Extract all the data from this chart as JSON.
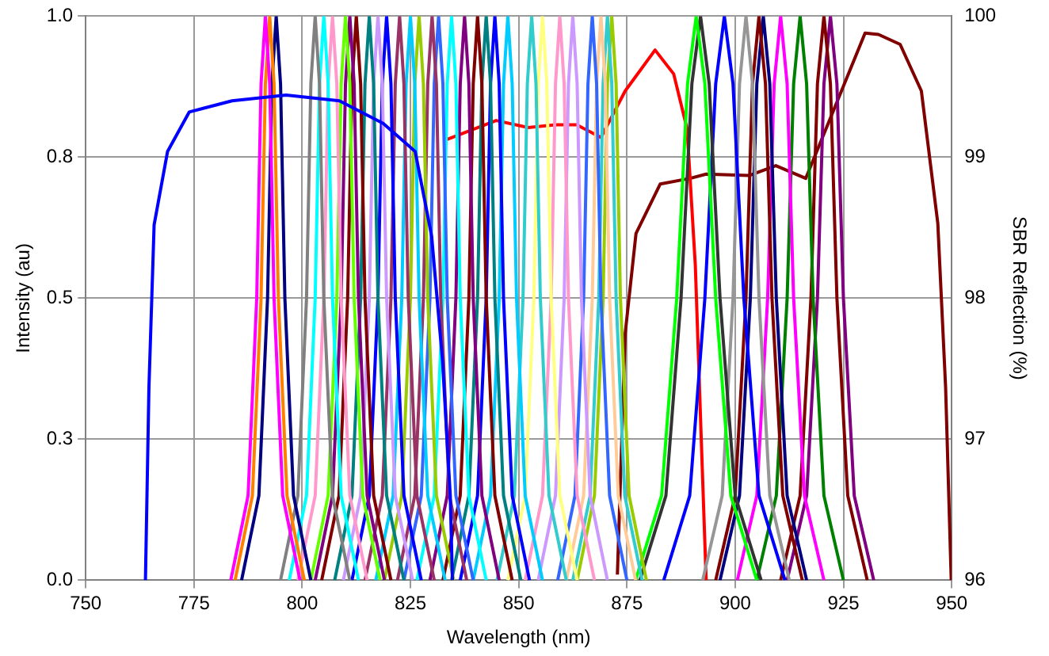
{
  "chart_data": {
    "type": "line",
    "xlabel": "Wavelength (nm)",
    "ylabel": "Intensity (au)",
    "y2label": "SBR Reflection (%)",
    "xlim": [
      750,
      950
    ],
    "xticks": [
      750,
      775,
      800,
      825,
      850,
      875,
      900,
      925,
      950
    ],
    "ylim": [
      0,
      1
    ],
    "yticks": [
      {
        "value": 0,
        "label": "0.0"
      },
      {
        "value": 0.25,
        "label": "0.3"
      },
      {
        "value": 0.5,
        "label": "0.5"
      },
      {
        "value": 0.75,
        "label": "0.8"
      },
      {
        "value": 1,
        "label": "1.0"
      }
    ],
    "y2lim": [
      96,
      100
    ],
    "y2ticks": [
      96,
      97,
      98,
      99,
      100
    ],
    "grid": true,
    "legend": false,
    "marker": "none",
    "line_style": "solid",
    "series": [
      {
        "color": "#0000ff",
        "x": [
          763.8,
          764.6,
          765.8,
          768.9,
          773.9,
          783.8,
          796.3,
          808.6,
          818.7,
          826.1,
          829.9,
          832.4,
          834.2,
          834.7
        ],
        "values": [
          0,
          0.34,
          0.63,
          0.76,
          0.83,
          0.85,
          0.86,
          0.85,
          0.81,
          0.76,
          0.61,
          0.39,
          0.15,
          0
        ]
      },
      {
        "color": "#ff00ff",
        "x": [
          783.5,
          787.5,
          789.5,
          790.5,
          791.5,
          792.5,
          793.5,
          795.5,
          799.5
        ],
        "values": [
          0,
          0.15,
          0.5,
          0.88,
          1,
          0.88,
          0.5,
          0.15,
          0
        ]
      },
      {
        "color": "#ff8000",
        "x": [
          784.5,
          788.5,
          790.5,
          791.5,
          792.5,
          793.5,
          794.5,
          796.5,
          800.5
        ],
        "values": [
          0,
          0.15,
          0.5,
          0.88,
          1,
          0.88,
          0.5,
          0.15,
          0
        ]
      },
      {
        "color": "#000080",
        "x": [
          786,
          790,
          792,
          793,
          794,
          795,
          796,
          798,
          802
        ],
        "values": [
          0,
          0.15,
          0.5,
          0.88,
          1,
          0.88,
          0.5,
          0.15,
          0
        ]
      },
      {
        "color": "#808080",
        "x": [
          795,
          799,
          801,
          802,
          803,
          804,
          805,
          807,
          811
        ],
        "values": [
          0,
          0.15,
          0.5,
          0.88,
          1,
          0.88,
          0.5,
          0.15,
          0
        ]
      },
      {
        "color": "#00ffff",
        "x": [
          797,
          801,
          803,
          804,
          805,
          806,
          807,
          809,
          813
        ],
        "values": [
          0,
          0.15,
          0.5,
          0.88,
          1,
          0.88,
          0.5,
          0.15,
          0
        ]
      },
      {
        "color": "#ff99cc",
        "x": [
          799,
          803,
          805,
          806,
          807,
          808,
          809,
          811,
          815
        ],
        "values": [
          0,
          0.15,
          0.5,
          0.88,
          1,
          0.88,
          0.5,
          0.15,
          0
        ]
      },
      {
        "color": "#66ff00",
        "x": [
          802,
          806,
          808,
          809,
          810,
          811,
          812,
          814,
          818
        ],
        "values": [
          0,
          0.15,
          0.5,
          0.88,
          1,
          0.88,
          0.5,
          0.15,
          0
        ]
      },
      {
        "color": "#800080",
        "x": [
          803,
          807,
          809,
          810,
          811,
          812,
          813,
          815,
          819
        ],
        "values": [
          0,
          0.15,
          0.5,
          0.88,
          1,
          0.88,
          0.5,
          0.15,
          0
        ]
      },
      {
        "color": "#800000",
        "x": [
          804.5,
          808.5,
          810.5,
          811.5,
          812.5,
          813.5,
          814.5,
          816.5,
          820.5
        ],
        "values": [
          0,
          0.15,
          0.5,
          0.88,
          1,
          0.88,
          0.5,
          0.15,
          0
        ]
      },
      {
        "color": "#008080",
        "x": [
          807.5,
          811.5,
          813.5,
          814.5,
          815.5,
          816.5,
          817.5,
          819.5,
          823.5
        ],
        "values": [
          0,
          0.15,
          0.5,
          0.88,
          1,
          0.88,
          0.5,
          0.15,
          0
        ]
      },
      {
        "color": "#cc99ff",
        "x": [
          809.5,
          813.5,
          815.5,
          816.5,
          817.5,
          818.5,
          819.5,
          821.5,
          825.5
        ],
        "values": [
          0,
          0.15,
          0.5,
          0.88,
          1,
          0.88,
          0.5,
          0.15,
          0
        ]
      },
      {
        "color": "#0000ff",
        "x": [
          811.5,
          815.5,
          817.5,
          818.5,
          819.5,
          820.5,
          821.5,
          823.5,
          827.5
        ],
        "values": [
          0,
          0.15,
          0.5,
          0.88,
          1,
          0.88,
          0.5,
          0.15,
          0
        ]
      },
      {
        "color": "#993366",
        "x": [
          814.5,
          818.5,
          820.5,
          821.5,
          822.5,
          823.5,
          824.5,
          826.5,
          830.5
        ],
        "values": [
          0,
          0.15,
          0.5,
          0.88,
          1,
          0.88,
          0.5,
          0.15,
          0
        ]
      },
      {
        "color": "#00ccff",
        "x": [
          817,
          821,
          823,
          824,
          825,
          826,
          827,
          829,
          833
        ],
        "values": [
          0,
          0.15,
          0.5,
          0.88,
          1,
          0.88,
          0.5,
          0.15,
          0
        ]
      },
      {
        "color": "#99cc00",
        "x": [
          819,
          823,
          825,
          826,
          827,
          828,
          829,
          831,
          835
        ],
        "values": [
          0,
          0.15,
          0.5,
          0.88,
          1,
          0.88,
          0.5,
          0.15,
          0
        ]
      },
      {
        "color": "#993366",
        "x": [
          822,
          826,
          828,
          829,
          830,
          831,
          832,
          834,
          838
        ],
        "values": [
          0,
          0.15,
          0.5,
          0.88,
          1,
          0.88,
          0.5,
          0.15,
          0
        ]
      },
      {
        "color": "#3366ff",
        "x": [
          823.5,
          827.5,
          829.5,
          830.5,
          831.5,
          832.5,
          833.5,
          835.5,
          839.5
        ],
        "values": [
          0,
          0.15,
          0.5,
          0.88,
          1,
          0.88,
          0.5,
          0.15,
          0
        ]
      },
      {
        "color": "#00ffff",
        "x": [
          826.5,
          830.5,
          832.5,
          833.5,
          834.5,
          835.5,
          836.5,
          838.5,
          842.5
        ],
        "values": [
          0,
          0.15,
          0.5,
          0.88,
          1,
          0.88,
          0.5,
          0.15,
          0
        ]
      },
      {
        "color": "#800080",
        "x": [
          829.5,
          833.5,
          835.5,
          836.5,
          837.5,
          838.5,
          839.5,
          841.5,
          845.5
        ],
        "values": [
          0,
          0.15,
          0.5,
          0.88,
          1,
          0.88,
          0.5,
          0.15,
          0
        ]
      },
      {
        "color": "#800000",
        "x": [
          832.5,
          836.5,
          838.5,
          839.5,
          840.5,
          841.5,
          842.5,
          844.5,
          848.5
        ],
        "values": [
          0,
          0.15,
          0.5,
          0.88,
          1,
          0.88,
          0.5,
          0.15,
          0
        ]
      },
      {
        "color": "#008080",
        "x": [
          834.5,
          838.5,
          840.5,
          841.5,
          842.5,
          843.5,
          844.5,
          846.5,
          850.5
        ],
        "values": [
          0,
          0.15,
          0.5,
          0.88,
          1,
          0.88,
          0.5,
          0.15,
          0
        ]
      },
      {
        "color": "#0000ff",
        "x": [
          836.5,
          840.5,
          842.5,
          843.5,
          844.5,
          845.5,
          846.5,
          848.5,
          852.5
        ],
        "values": [
          0,
          0.15,
          0.5,
          0.88,
          1,
          0.88,
          0.5,
          0.15,
          0
        ]
      },
      {
        "color": "#00ccff",
        "x": [
          839.5,
          843.5,
          845.5,
          846.5,
          847.5,
          848.5,
          849.5,
          851.5,
          855.5
        ],
        "values": [
          0,
          0.15,
          0.5,
          0.88,
          1,
          0.88,
          0.5,
          0.15,
          0
        ]
      },
      {
        "color": "#33cccc",
        "x": [
          845,
          849,
          851,
          852,
          853,
          854,
          855,
          857,
          861
        ],
        "values": [
          0,
          0.15,
          0.5,
          0.88,
          1,
          0.88,
          0.5,
          0.15,
          0
        ]
      },
      {
        "color": "#ffff80",
        "x": [
          847.5,
          851.5,
          853.5,
          854.5,
          855.5,
          856.5,
          857.5,
          859.5,
          863.5
        ],
        "values": [
          0,
          0.15,
          0.5,
          0.88,
          1,
          0.88,
          0.5,
          0.15,
          0
        ]
      },
      {
        "color": "#ff99cc",
        "x": [
          851.5,
          855.5,
          857.5,
          858.5,
          859.5,
          860.5,
          861.5,
          863.5,
          867.5
        ],
        "values": [
          0,
          0.15,
          0.5,
          0.88,
          1,
          0.88,
          0.5,
          0.15,
          0
        ]
      },
      {
        "color": "#cc99ff",
        "x": [
          854.5,
          858.5,
          860.5,
          861.5,
          862.5,
          863.5,
          864.5,
          866.5,
          870.5
        ],
        "values": [
          0,
          0.15,
          0.5,
          0.88,
          1,
          0.88,
          0.5,
          0.15,
          0
        ]
      },
      {
        "color": "#3366ff",
        "x": [
          859,
          863,
          865,
          866,
          867,
          868,
          869,
          871,
          875
        ],
        "values": [
          0,
          0.15,
          0.5,
          0.88,
          1,
          0.88,
          0.5,
          0.15,
          0
        ]
      },
      {
        "color": "#ffcc99",
        "x": [
          861,
          865,
          867,
          868,
          869,
          870,
          871,
          873,
          877
        ],
        "values": [
          0,
          0.15,
          0.5,
          0.88,
          1,
          0.88,
          0.5,
          0.15,
          0
        ]
      },
      {
        "color": "#33cccc",
        "x": [
          862.5,
          866.5,
          868.5,
          869.5,
          870.5,
          871.5,
          872.5,
          874.5,
          878.5
        ],
        "values": [
          0,
          0.15,
          0.5,
          0.88,
          1,
          0.88,
          0.5,
          0.15,
          0
        ]
      },
      {
        "color": "#99cc00",
        "x": [
          863.5,
          867.5,
          869.5,
          870.5,
          871.5,
          872.5,
          873.5,
          875.5,
          879.5
        ],
        "values": [
          0,
          0.15,
          0.5,
          0.88,
          1,
          0.88,
          0.5,
          0.15,
          0
        ]
      },
      {
        "color": "#00ff00",
        "x": [
          877,
          883,
          886.5,
          889,
          891,
          893,
          895.5,
          899,
          905
        ],
        "values": [
          0,
          0.15,
          0.5,
          0.88,
          1,
          0.88,
          0.5,
          0.15,
          0
        ]
      },
      {
        "color": "#333333",
        "x": [
          878,
          884,
          887.5,
          890,
          892,
          894,
          896.5,
          900,
          906
        ],
        "values": [
          0,
          0.15,
          0.5,
          0.88,
          1,
          0.88,
          0.5,
          0.15,
          0
        ]
      },
      {
        "color": "#0000ff",
        "x": [
          883.5,
          889.5,
          893,
          895.5,
          897.5,
          899.5,
          902,
          905.5,
          911.5
        ],
        "values": [
          0,
          0.15,
          0.5,
          0.88,
          1,
          0.88,
          0.5,
          0.15,
          0
        ]
      },
      {
        "color": "#969696",
        "x": [
          892.5,
          897,
          899.5,
          901,
          902.5,
          904,
          905.5,
          908,
          912.5
        ],
        "values": [
          0,
          0.15,
          0.5,
          0.88,
          1,
          0.88,
          0.5,
          0.15,
          0
        ]
      },
      {
        "color": "#800000",
        "x": [
          895.5,
          900,
          902.5,
          904,
          905.5,
          907,
          908.5,
          911,
          915.5
        ],
        "values": [
          0,
          0.15,
          0.5,
          0.88,
          1,
          0.88,
          0.5,
          0.15,
          0
        ]
      },
      {
        "color": "#000080",
        "x": [
          896.5,
          901,
          903.5,
          905,
          906.5,
          908,
          909.5,
          912,
          916.5
        ],
        "values": [
          0,
          0.15,
          0.5,
          0.88,
          1,
          0.88,
          0.5,
          0.15,
          0
        ]
      },
      {
        "color": "#ff00ff",
        "x": [
          900.5,
          905,
          907.5,
          909,
          910.5,
          912,
          913.5,
          916,
          920.5
        ],
        "values": [
          0,
          0.15,
          0.5,
          0.88,
          1,
          0.88,
          0.5,
          0.15,
          0
        ]
      },
      {
        "color": "#008000",
        "x": [
          905,
          909.5,
          912,
          913.5,
          915,
          916.5,
          918,
          920.5,
          925
        ],
        "values": [
          0,
          0.15,
          0.5,
          0.88,
          1,
          0.88,
          0.5,
          0.15,
          0
        ]
      },
      {
        "color": "#800000",
        "x": [
          910.5,
          915,
          917.5,
          919,
          920.5,
          922,
          923.5,
          926,
          930.5
        ],
        "values": [
          0,
          0.15,
          0.5,
          0.88,
          1,
          0.88,
          0.5,
          0.15,
          0
        ]
      },
      {
        "color": "#800080",
        "x": [
          912,
          916.5,
          919,
          920.5,
          922,
          923.5,
          925,
          927.5,
          932
        ],
        "values": [
          0,
          0.15,
          0.5,
          0.88,
          1,
          0.88,
          0.5,
          0.15,
          0
        ]
      },
      {
        "color": "#ff0000",
        "axis": "y2",
        "x": [
          832.9,
          844.8,
          852.2,
          858.5,
          863.4,
          869.0,
          874.6,
          881.5,
          885.8,
          888.9,
          890.8,
          892.1,
          893.3
        ],
        "values": [
          99.12,
          99.26,
          99.21,
          99.23,
          99.23,
          99.14,
          99.47,
          99.76,
          99.59,
          99.2,
          98.23,
          97.06,
          96.0
        ]
      },
      {
        "color": "#800000",
        "axis": "y2",
        "x": [
          872.8,
          874.6,
          877.1,
          882.7,
          889.6,
          893.3,
          903.2,
          909.4,
          916.3,
          921.9,
          930.0,
          933.1,
          938.1,
          943.0,
          946.8,
          948.6,
          949.9
        ],
        "values": [
          96.04,
          97.75,
          98.46,
          98.81,
          98.85,
          98.88,
          98.87,
          98.94,
          98.85,
          99.27,
          99.88,
          99.87,
          99.8,
          99.47,
          98.53,
          97.37,
          96.0
        ]
      }
    ]
  }
}
